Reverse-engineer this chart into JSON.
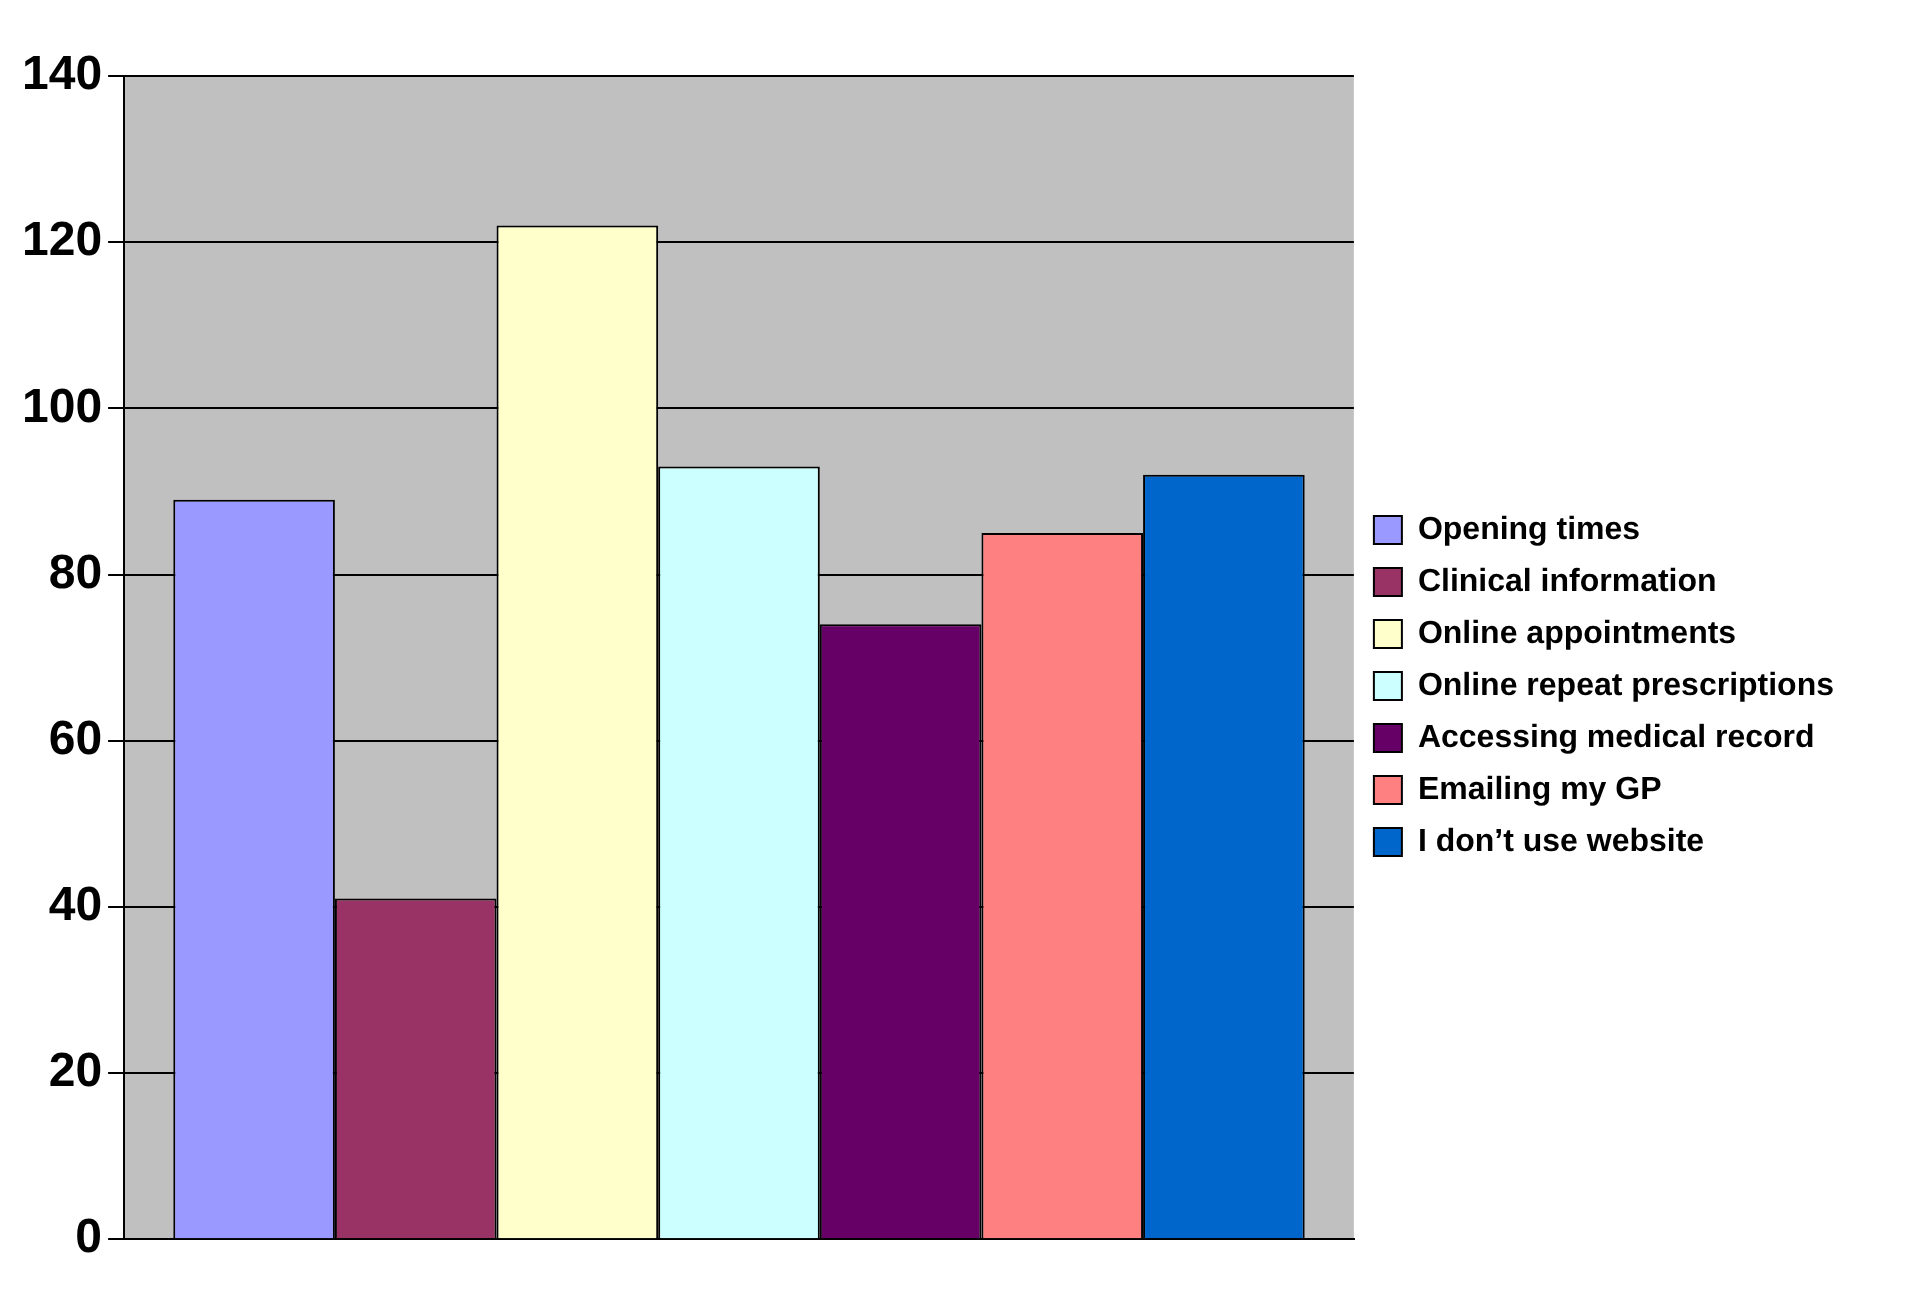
{
  "chart_data": {
    "type": "bar",
    "categories": [
      null
    ],
    "series": [
      {
        "name": "Opening times",
        "color": "#9999ff",
        "values": [
          89
        ]
      },
      {
        "name": "Clinical information",
        "color": "#993366",
        "values": [
          41
        ]
      },
      {
        "name": "Online appointments",
        "color": "#ffffcc",
        "values": [
          122
        ]
      },
      {
        "name": "Online repeat prescriptions",
        "color": "#ccffff",
        "values": [
          93
        ]
      },
      {
        "name": "Accessing medical record",
        "color": "#660066",
        "values": [
          74
        ]
      },
      {
        "name": "Emailing my GP",
        "color": "#ff8080",
        "values": [
          85
        ]
      },
      {
        "name": "I don’t use website",
        "color": "#0066cc",
        "values": [
          92
        ]
      }
    ],
    "ylim": [
      0,
      140
    ],
    "yticks": [
      0,
      20,
      40,
      60,
      80,
      100,
      120,
      140
    ],
    "grid": "y",
    "legend": "right"
  }
}
